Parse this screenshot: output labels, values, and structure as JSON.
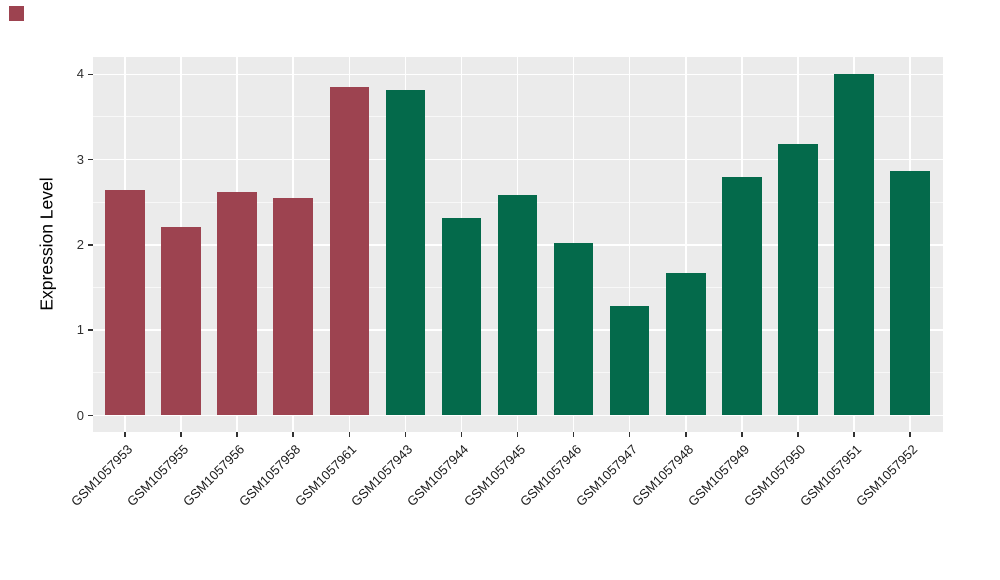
{
  "figure": {
    "background_color": "#FFFFFF",
    "panel_background_color": "#EBEBEB",
    "gridline_color": "#FFFFFF",
    "tick_color": "#333333",
    "corner_marker_color": "#9D4350"
  },
  "chart_data": {
    "type": "bar",
    "title": "",
    "xlabel": "",
    "ylabel": "Expression Level",
    "categories": [
      "GSM1057953",
      "GSM1057955",
      "GSM1057956",
      "GSM1057958",
      "GSM1057961",
      "GSM1057943",
      "GSM1057944",
      "GSM1057945",
      "GSM1057946",
      "GSM1057947",
      "GSM1057948",
      "GSM1057949",
      "GSM1057950",
      "GSM1057951",
      "GSM1057952"
    ],
    "values": [
      2.64,
      2.21,
      2.62,
      2.55,
      3.85,
      3.82,
      2.31,
      2.59,
      2.02,
      1.28,
      1.67,
      2.8,
      3.18,
      4.0,
      2.87
    ],
    "bar_groups": [
      "red",
      "red",
      "red",
      "red",
      "red",
      "green",
      "green",
      "green",
      "green",
      "green",
      "green",
      "green",
      "green",
      "green",
      "green"
    ],
    "group_colors": {
      "red": "#9D4350",
      "green": "#046A4B"
    },
    "ylim": [
      0,
      4.2
    ],
    "yticks": [
      "0",
      "1",
      "2",
      "3",
      "4"
    ],
    "ytick_values": [
      0,
      1,
      2,
      3,
      4
    ],
    "ytick_minor_values": [
      0.5,
      1.5,
      2.5,
      3.5
    ],
    "grid": "white major and minor horizontal lines, white vertical line at each category, on gray panel",
    "legend": "none",
    "x_label_rotation_deg": 45
  }
}
